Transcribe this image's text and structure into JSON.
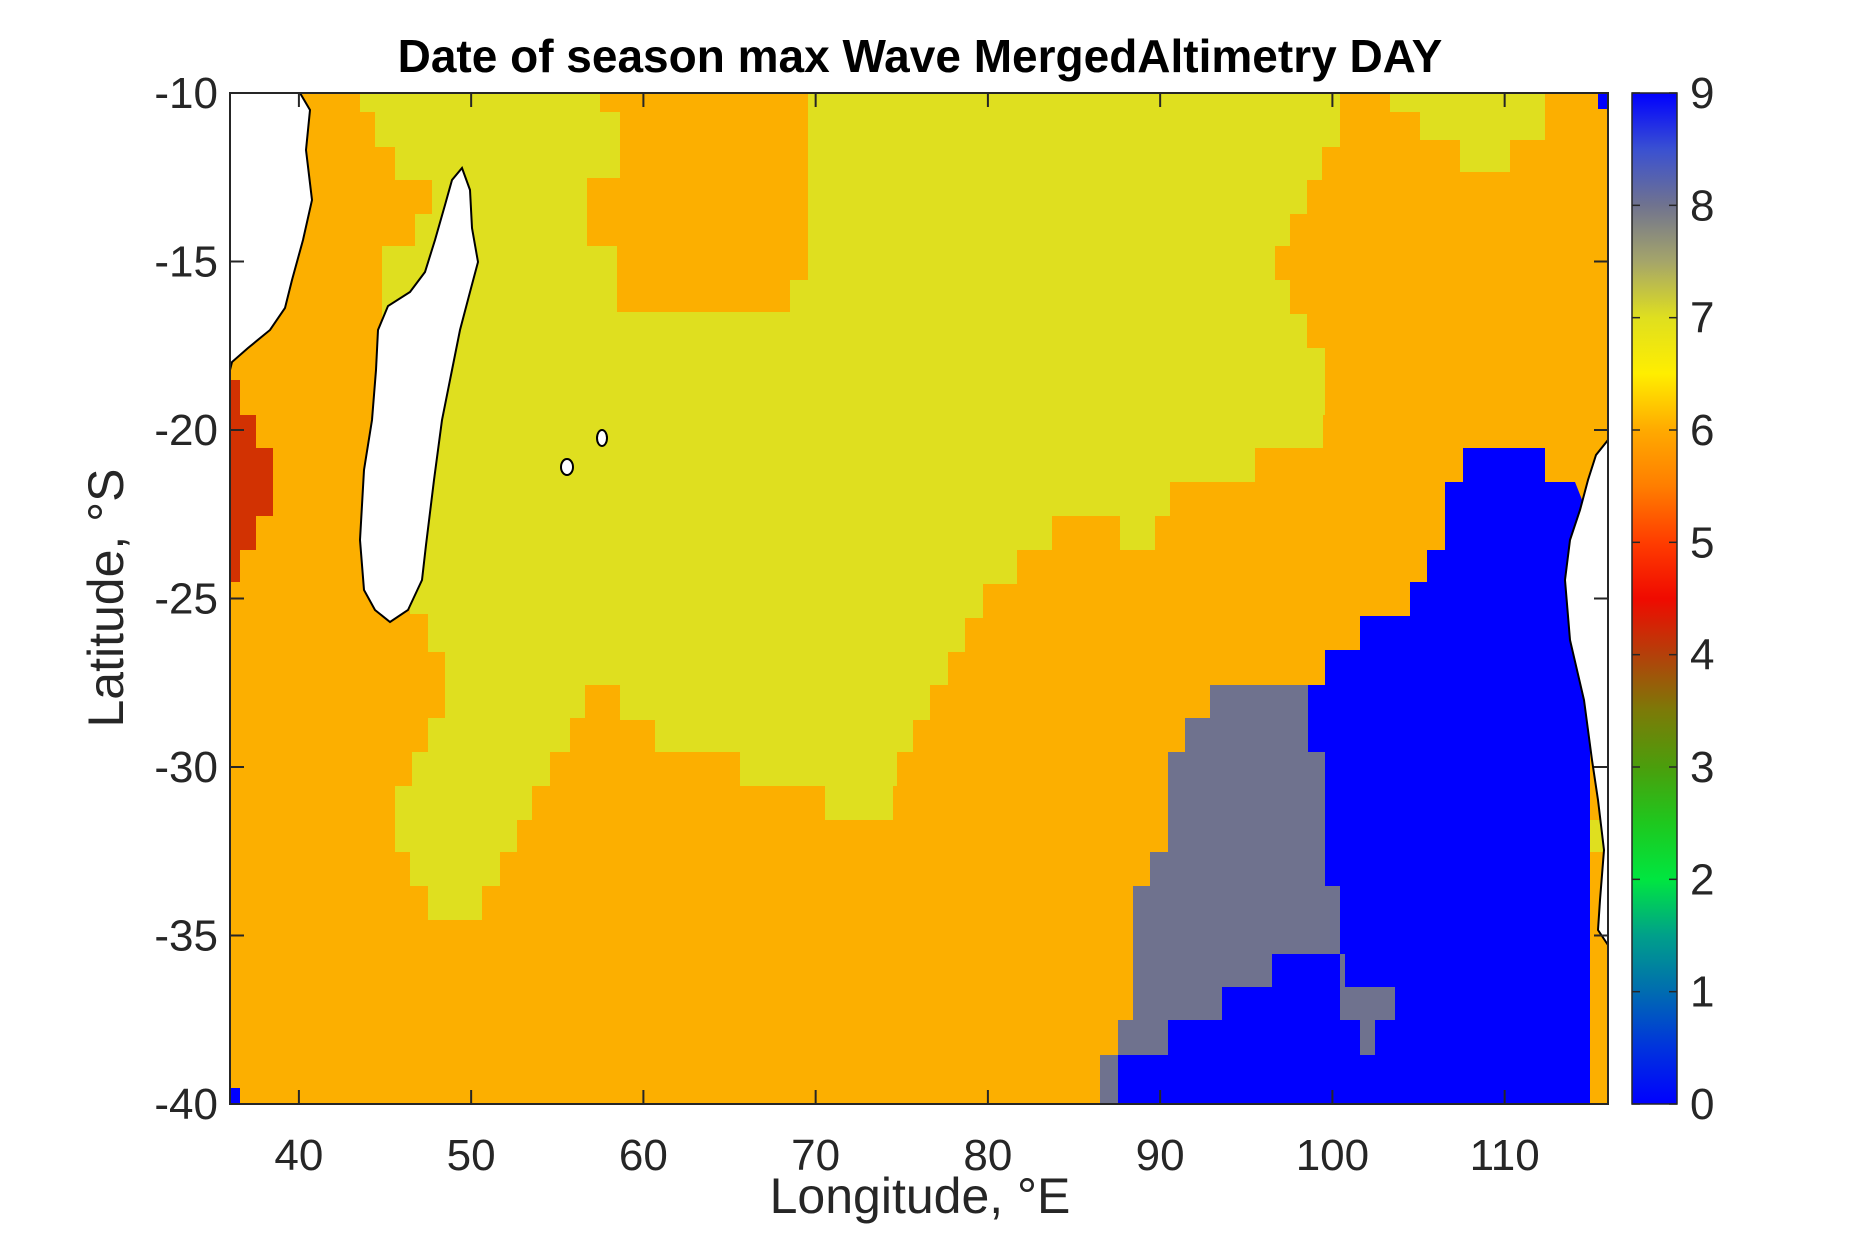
{
  "title": "Date of season max Wave MergedAltimetry DAY",
  "xlabel": "Longitude, °E",
  "ylabel": "Latitude, °S",
  "chart_data": {
    "type": "heatmap",
    "title": "Date of season max Wave MergedAltimetry DAY",
    "xlabel": "Longitude, °E",
    "ylabel": "Latitude, °S",
    "xlim": [
      36,
      116
    ],
    "ylim": [
      -40,
      -10
    ],
    "xticks": [
      40,
      50,
      60,
      70,
      80,
      90,
      100,
      110
    ],
    "yticks": [
      -10,
      -15,
      -20,
      -25,
      -30,
      -35,
      -40
    ],
    "colorbar": {
      "range": [
        0,
        9
      ],
      "ticks": [
        0,
        1,
        2,
        3,
        4,
        5,
        6,
        7,
        8,
        9
      ],
      "colormap": "jet-like (blue-green-yellow-red-grey-blue)"
    },
    "regions": [
      {
        "value": 6.0,
        "color": "#fcaf00",
        "description": "orange background (day 6)"
      },
      {
        "value": 7.1,
        "color": "#dfdf1f",
        "description": "yellow central Indian Ocean (day 7)"
      },
      {
        "value": 4.8,
        "color": "#d23202",
        "description": "red patch off Mozambique (day 5)"
      },
      {
        "value": 8.0,
        "color": "#6f728e",
        "description": "grey band near 90-100°E (day 8)"
      },
      {
        "value": 9.0,
        "color": "#0000ff",
        "description": "blue region off Western Australia (day 9)"
      }
    ],
    "land_color": "#ffffff",
    "grid": false,
    "legend": "colorbar right"
  }
}
